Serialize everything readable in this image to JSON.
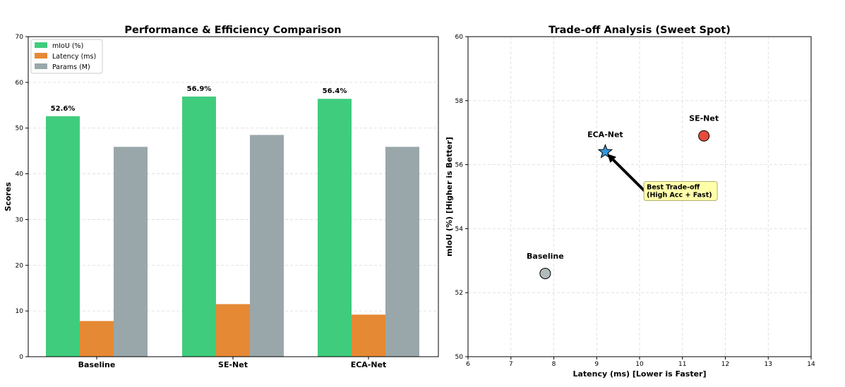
{
  "chart_data": [
    {
      "type": "bar",
      "title": "Performance & Efficiency Comparison",
      "xlabel": "",
      "ylabel": "Scores",
      "ylim": [
        0,
        70
      ],
      "yticks": [
        0,
        10,
        20,
        30,
        40,
        50,
        60,
        70
      ],
      "grid": "y",
      "legend_position": "top-left",
      "categories": [
        "Baseline",
        "SE-Net",
        "ECA-Net"
      ],
      "series": [
        {
          "name": "mIoU (%)",
          "color": "#40cc7d",
          "values": [
            52.6,
            56.9,
            56.4
          ]
        },
        {
          "name": "Latency (ms)",
          "color": "#e58935",
          "values": [
            7.8,
            11.5,
            9.2
          ]
        },
        {
          "name": "Params (M)",
          "color": "#99a7ab",
          "values": [
            45.9,
            48.5,
            45.9
          ]
        }
      ],
      "bar_labels": [
        "52.6%",
        "56.9%",
        "56.4%"
      ]
    },
    {
      "type": "scatter",
      "title": "Trade-off Analysis (Sweet Spot)",
      "xlabel": "Latency (ms) [Lower is Faster]",
      "ylabel": "mIoU (%) [Higher is Better]",
      "xlim": [
        6,
        14
      ],
      "ylim": [
        50,
        60
      ],
      "xticks": [
        6,
        7,
        8,
        9,
        10,
        11,
        12,
        13,
        14
      ],
      "yticks": [
        50,
        52,
        54,
        56,
        58,
        60
      ],
      "grid": "both-dashed",
      "points": [
        {
          "label": "Baseline",
          "x": 7.8,
          "y": 52.6,
          "marker": "circle",
          "color": "#b1bbbb"
        },
        {
          "label": "SE-Net",
          "x": 11.5,
          "y": 56.9,
          "marker": "circle",
          "color": "#e54c3c"
        },
        {
          "label": "ECA-Net",
          "x": 9.2,
          "y": 56.4,
          "marker": "star",
          "color": "#3498db"
        }
      ],
      "annotation": {
        "lines": [
          "Best Trade-off",
          "(High Acc + Fast)"
        ],
        "text_x": 10.15,
        "text_y": 54.9,
        "arrow_to": "ECA-Net",
        "box_color": "#ffffaa"
      }
    }
  ]
}
